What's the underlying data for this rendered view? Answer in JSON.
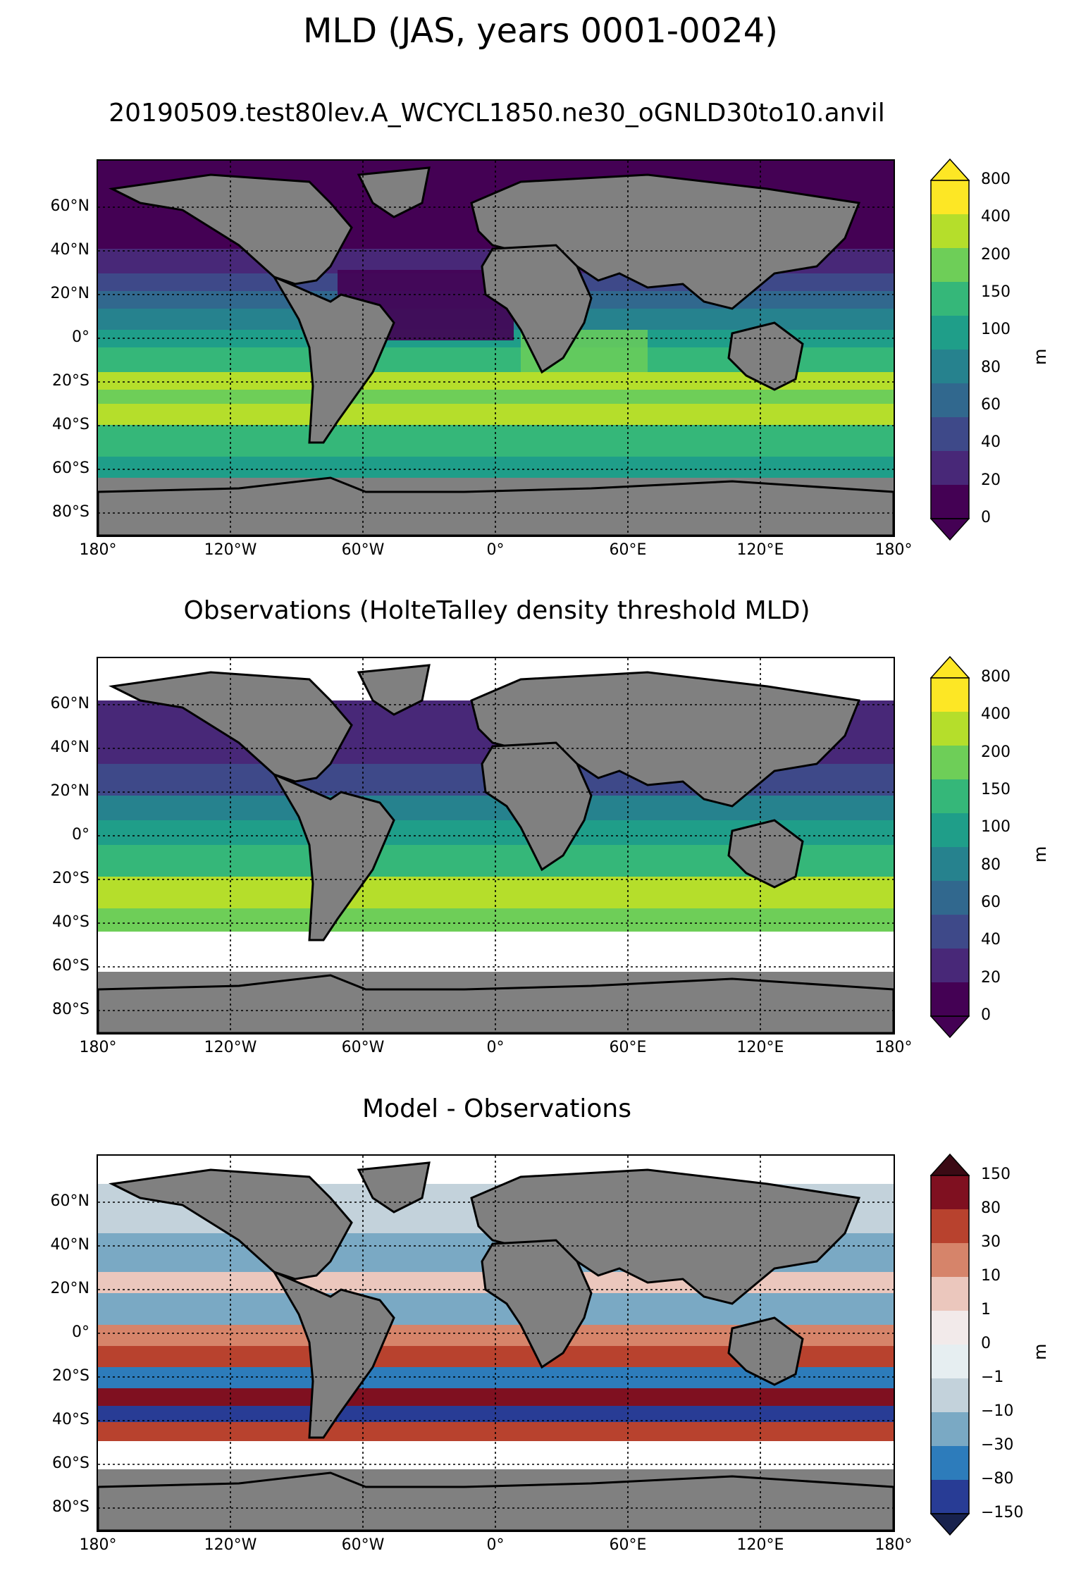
{
  "title": "MLD (JAS, years 0001-0024)",
  "panels": [
    {
      "id": "model",
      "subtitle": "20190509.test80lev.A_WCYCL1850.ne30_oGNLD30to10.anvil",
      "colorbar": {
        "unit": "m",
        "ticks": [
          "800",
          "400",
          "200",
          "150",
          "100",
          "80",
          "60",
          "40",
          "20",
          "0"
        ],
        "colors": [
          "#fde725",
          "#b5de2b",
          "#6ece58",
          "#35b779",
          "#1f9e89",
          "#26828e",
          "#31688e",
          "#3e4989",
          "#482878",
          "#440154"
        ],
        "extend_top": "#fde725",
        "extend_bottom": "#440154"
      }
    },
    {
      "id": "obs",
      "subtitle": "Observations (HolteTalley density threshold MLD)",
      "colorbar": {
        "unit": "m",
        "ticks": [
          "800",
          "400",
          "200",
          "150",
          "100",
          "80",
          "60",
          "40",
          "20",
          "0"
        ],
        "colors": [
          "#fde725",
          "#b5de2b",
          "#6ece58",
          "#35b779",
          "#1f9e89",
          "#26828e",
          "#31688e",
          "#3e4989",
          "#482878",
          "#440154"
        ],
        "extend_top": "#fde725",
        "extend_bottom": "#440154"
      }
    },
    {
      "id": "diff",
      "subtitle": "Model - Observations",
      "colorbar": {
        "unit": "m",
        "ticks": [
          "150",
          "80",
          "30",
          "10",
          "1",
          "0",
          "−1",
          "−10",
          "−30",
          "−80",
          "−150"
        ],
        "colors": [
          "#7f1020",
          "#b8422e",
          "#d6846a",
          "#ebc7bd",
          "#f2eaea",
          "#e6eef1",
          "#c3d2db",
          "#7aa9c4",
          "#2d7cbb",
          "#283c95"
        ],
        "extend_top": "#3b0a14",
        "extend_bottom": "#18224d"
      }
    }
  ],
  "axes": {
    "lat_labels": [
      "60°N",
      "40°N",
      "20°N",
      "0°",
      "20°S",
      "40°S",
      "60°S",
      "80°S"
    ],
    "lon_labels": [
      "180°",
      "120°W",
      "60°W",
      "0°",
      "60°E",
      "120°E",
      "180°"
    ]
  },
  "land_color": "#808080"
}
